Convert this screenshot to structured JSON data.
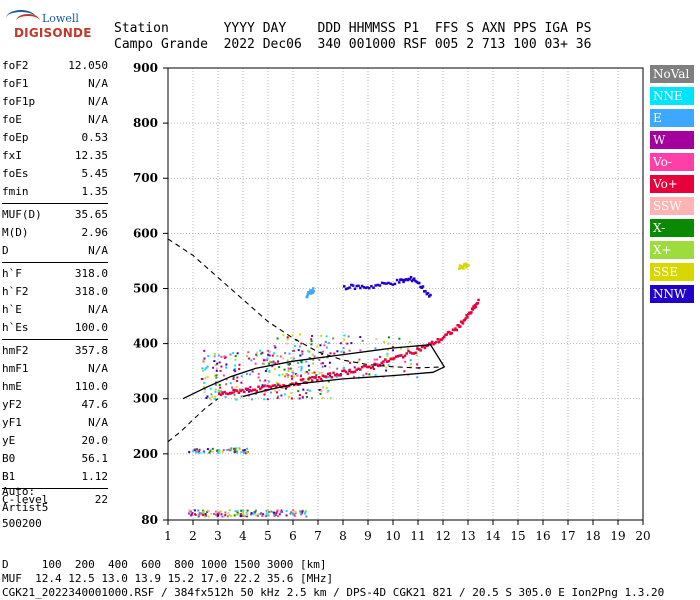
{
  "logo": {
    "line1": "Lowell",
    "line2": "DIGISONDE"
  },
  "header": {
    "labels": "Station       YYYY DAY    DDD HHMMSS P1  FFS S AXN PPS IGA PS",
    "values": "Campo Grande  2022 Dec06  340 001000 RSF 005 2 713 100 03+ 36"
  },
  "params": [
    {
      "k": "foF2",
      "v": "12.050"
    },
    {
      "k": "foF1",
      "v": "N/A"
    },
    {
      "k": "foF1p",
      "v": "N/A"
    },
    {
      "k": "foE",
      "v": "N/A"
    },
    {
      "k": "foEp",
      "v": "0.53"
    },
    {
      "k": "fxI",
      "v": "12.35"
    },
    {
      "k": "foEs",
      "v": "5.45"
    },
    {
      "k": "fmin",
      "v": "1.35"
    },
    {
      "sep": true
    },
    {
      "k": "MUF(D)",
      "v": "35.65"
    },
    {
      "k": "M(D)",
      "v": "2.96"
    },
    {
      "k": "D",
      "v": "N/A"
    },
    {
      "sep": true
    },
    {
      "k": "h`F",
      "v": "318.0"
    },
    {
      "k": "h`F2",
      "v": "318.0"
    },
    {
      "k": "h`E",
      "v": "N/A"
    },
    {
      "k": "h`Es",
      "v": "100.0"
    },
    {
      "sep": true
    },
    {
      "k": "hmF2",
      "v": "357.8"
    },
    {
      "k": "hmF1",
      "v": "N/A"
    },
    {
      "k": "hmE",
      "v": "110.0"
    },
    {
      "k": "yF2",
      "v": "47.6"
    },
    {
      "k": "yF1",
      "v": "N/A"
    },
    {
      "k": "yE",
      "v": "20.0"
    },
    {
      "k": "B0",
      "v": "56.1"
    },
    {
      "k": "B1",
      "v": "1.12"
    },
    {
      "sep": true
    },
    {
      "k": "C-level",
      "v": "22"
    }
  ],
  "auto": {
    "line1": "Auto:",
    "line2": "Artist5",
    "line3": "500200"
  },
  "legend": [
    {
      "label": "NoVal",
      "color": "#7f7f7f"
    },
    {
      "label": "NNE",
      "color": "#00e5ff"
    },
    {
      "label": "E",
      "color": "#3da8ff"
    },
    {
      "label": "W",
      "color": "#a3009e"
    },
    {
      "label": "Vo-",
      "color": "#ff3fa8"
    },
    {
      "label": "Vo+",
      "color": "#e8003c"
    },
    {
      "label": "SSW",
      "color": "#ffb3b3"
    },
    {
      "label": "X-",
      "color": "#0a8a00"
    },
    {
      "label": "X+",
      "color": "#9cdc3c"
    },
    {
      "label": "SSE",
      "color": "#d8d800"
    },
    {
      "label": "NNW",
      "color": "#2200cc"
    }
  ],
  "chart_data": {
    "type": "scatter",
    "title": "",
    "xlabel": "",
    "ylabel": "",
    "xlim": [
      1,
      20
    ],
    "ylim": [
      80,
      900
    ],
    "x_ticks": [
      1,
      2,
      3,
      4,
      5,
      6,
      7,
      8,
      9,
      10,
      11,
      12,
      13,
      14,
      15,
      16,
      17,
      18,
      19,
      20
    ],
    "y_ticks": [
      80,
      200,
      300,
      400,
      500,
      600,
      700,
      800,
      900
    ],
    "grid": true,
    "series": [
      {
        "name": "Vo+",
        "values": [
          [
            3.0,
            310
          ],
          [
            4.0,
            318
          ],
          [
            5.0,
            322
          ],
          [
            6.0,
            330
          ],
          [
            7.0,
            340
          ],
          [
            8.0,
            350
          ],
          [
            9.0,
            360
          ],
          [
            10.0,
            375
          ],
          [
            11.0,
            392
          ],
          [
            11.8,
            408
          ],
          [
            12.5,
            430
          ],
          [
            13.0,
            455
          ],
          [
            13.4,
            480
          ]
        ]
      },
      {
        "name": "SSE",
        "values": [
          [
            12.6,
            540
          ],
          [
            13.0,
            545
          ]
        ]
      },
      {
        "name": "NNW",
        "values": [
          [
            8.0,
            505
          ],
          [
            9.0,
            505
          ],
          [
            10.2,
            515
          ],
          [
            10.8,
            520
          ],
          [
            11.5,
            485
          ]
        ]
      },
      {
        "name": "E",
        "values": [
          [
            6.5,
            490
          ],
          [
            6.8,
            500
          ]
        ]
      }
    ],
    "traces": [
      {
        "name": "profile-solid",
        "values": [
          [
            1.6,
            300
          ],
          [
            2.5,
            320
          ],
          [
            3.5,
            340
          ],
          [
            4.5,
            355
          ],
          [
            6.0,
            368
          ],
          [
            8.0,
            380
          ],
          [
            10.0,
            392
          ],
          [
            11.5,
            398
          ],
          [
            12.05,
            357.8
          ],
          [
            11.6,
            348
          ],
          [
            10,
            342
          ],
          [
            8,
            336
          ],
          [
            6,
            326
          ],
          [
            5,
            316
          ],
          [
            4,
            304
          ]
        ]
      },
      {
        "name": "profile-dashed-upper",
        "values": [
          [
            1,
            590
          ],
          [
            2,
            560
          ],
          [
            3,
            520
          ],
          [
            4,
            480
          ],
          [
            5,
            440
          ],
          [
            6,
            410
          ],
          [
            7,
            385
          ],
          [
            8,
            370
          ],
          [
            9,
            362
          ],
          [
            10,
            358
          ],
          [
            11,
            356
          ],
          [
            12,
            357.8
          ]
        ]
      },
      {
        "name": "profile-dashed-lower",
        "values": [
          [
            1,
            222
          ],
          [
            1.5,
            240
          ],
          [
            2,
            262
          ],
          [
            2.5,
            283
          ],
          [
            3,
            300
          ]
        ]
      }
    ]
  },
  "footer": {
    "line1": "D     100  200  400  600  800 1000 1500 3000 [km]",
    "line2": "MUF  12.4 12.5 13.0 13.9 15.2 17.0 22.2 35.6 [MHz]",
    "line3": "CGK21_2022340001000.RSF / 384fx512h 50 kHz 2.5 km / DPS-4D CGK21 821 / 20.5 S 305.0 E Ion2Png 1.3.20"
  }
}
